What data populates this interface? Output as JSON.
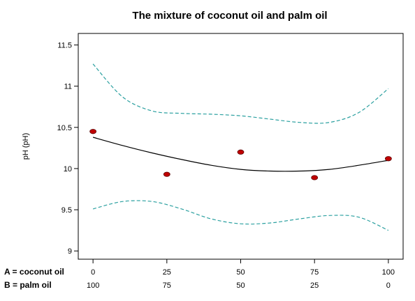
{
  "chart_data": {
    "type": "line",
    "title": "The mixture of coconut oil and palm oil",
    "ylabel": "pH (pH)",
    "ylim": [
      8.9,
      11.64
    ],
    "xlim": [
      -5,
      105
    ],
    "y_ticks": [
      "9",
      "9.5",
      "10",
      "10.5",
      "11",
      "11.5"
    ],
    "x_ticks": [
      0,
      25,
      50,
      75,
      100
    ],
    "x_axes": [
      {
        "name": "A = coconut oil",
        "ticks": [
          "0",
          "25",
          "50",
          "75",
          "100"
        ]
      },
      {
        "name": "B = palm oil",
        "ticks": [
          "100",
          "75",
          "50",
          "25",
          "0"
        ]
      }
    ],
    "series": [
      {
        "name": "",
        "style": "scatter",
        "color": "#c00000",
        "x": [
          0,
          25,
          50,
          75,
          100
        ],
        "y": [
          10.45,
          9.93,
          10.2,
          9.89,
          10.12
        ]
      },
      {
        "name": "",
        "style": "line",
        "color": "#000000",
        "x": [
          0,
          10,
          20,
          30,
          40,
          50,
          60,
          70,
          80,
          90,
          100
        ],
        "y": [
          10.38,
          10.28,
          10.19,
          10.11,
          10.04,
          9.99,
          9.97,
          9.97,
          9.99,
          10.04,
          10.1
        ]
      },
      {
        "name": "",
        "style": "dashed",
        "color": "#2ba0a0",
        "x": [
          0,
          10,
          20,
          30,
          40,
          50,
          60,
          70,
          80,
          90,
          100
        ],
        "y": [
          11.27,
          10.87,
          10.7,
          10.67,
          10.66,
          10.64,
          10.6,
          10.56,
          10.56,
          10.68,
          10.97
        ]
      },
      {
        "name": "",
        "style": "dashed",
        "color": "#2ba0a0",
        "x": [
          0,
          10,
          20,
          30,
          40,
          50,
          60,
          70,
          80,
          90,
          100
        ],
        "y": [
          9.51,
          9.6,
          9.6,
          9.51,
          9.39,
          9.33,
          9.34,
          9.39,
          9.43,
          9.41,
          9.25
        ]
      }
    ]
  }
}
